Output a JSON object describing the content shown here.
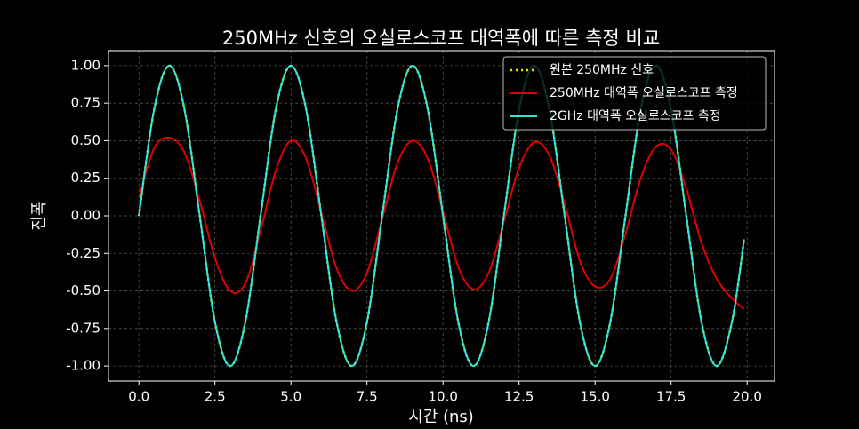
{
  "chart_data": {
    "type": "line",
    "title": "250MHz 신호의 오실로스코프 대역폭에 따른 측정 비교",
    "x_label": "시간 (ns)",
    "y_label": "진폭",
    "x": [
      0,
      0.5,
      1,
      1.5,
      2,
      2.5,
      3,
      3.5,
      4,
      4.5,
      5,
      5.5,
      6,
      6.5,
      7,
      7.5,
      8,
      8.5,
      9,
      9.5,
      10,
      10.5,
      11,
      11.5,
      12,
      12.5,
      13,
      13.5,
      14,
      14.5,
      15,
      15.5,
      16,
      16.5,
      17,
      17.5,
      18,
      18.5,
      19,
      19.5,
      19.9
    ],
    "series": [
      {
        "name": "원본 250MHz 신호",
        "color": "#e6e600",
        "dash": "dotted",
        "values": [
          0,
          0.707,
          1,
          0.707,
          0,
          -0.707,
          -1,
          -0.707,
          0,
          0.707,
          1,
          0.707,
          0,
          -0.707,
          -1,
          -0.707,
          0,
          0.707,
          1,
          0.707,
          0,
          -0.707,
          -1,
          -0.707,
          0,
          0.707,
          1,
          0.707,
          0,
          -0.707,
          -1,
          -0.707,
          0,
          0.707,
          1,
          0.707,
          0,
          -0.707,
          -1,
          -0.707,
          -0.156
        ]
      },
      {
        "name": "250MHz 대역폭 오실로스코프 측정",
        "color": "#e00000",
        "dash": "solid",
        "values": [
          0.12,
          0.45,
          0.52,
          0.42,
          0.1,
          -0.28,
          -0.5,
          -0.45,
          -0.1,
          0.3,
          0.5,
          0.38,
          0.02,
          -0.35,
          -0.5,
          -0.38,
          -0.02,
          0.35,
          0.5,
          0.38,
          0.03,
          -0.34,
          -0.49,
          -0.38,
          -0.04,
          0.32,
          0.49,
          0.4,
          0.08,
          -0.3,
          -0.47,
          -0.42,
          -0.12,
          0.25,
          0.46,
          0.44,
          0.18,
          -0.18,
          -0.42,
          -0.55,
          -0.62
        ]
      },
      {
        "name": "2GHz 대역폭 오실로스코프 측정",
        "color": "#33e6d9",
        "dash": "solid",
        "values": [
          0,
          0.707,
          1,
          0.707,
          0,
          -0.707,
          -1,
          -0.707,
          0,
          0.707,
          1,
          0.707,
          0,
          -0.707,
          -1,
          -0.707,
          0,
          0.707,
          1,
          0.707,
          0,
          -0.707,
          -1,
          -0.707,
          0,
          0.707,
          1,
          0.707,
          0,
          -0.707,
          -1,
          -0.707,
          0,
          0.707,
          1,
          0.707,
          0,
          -0.707,
          -1,
          -0.707,
          -0.156
        ]
      }
    ],
    "xlim": [
      -1,
      20.9
    ],
    "ylim": [
      -1.1,
      1.1
    ],
    "xticks": [
      {
        "value": 0,
        "label": "0.0"
      },
      2.5,
      {
        "value": 5,
        "label": "5.0"
      },
      7.5,
      {
        "value": 10,
        "label": "10.0"
      },
      12.5,
      {
        "value": 15,
        "label": "15.0"
      },
      17.5,
      {
        "value": 20,
        "label": "20.0"
      }
    ],
    "yticks": [
      {
        "value": -1,
        "label": "-1.00"
      },
      -0.75,
      {
        "value": -0.5,
        "label": "-0.50"
      },
      -0.25,
      {
        "value": 0,
        "label": "0.00"
      },
      0.25,
      {
        "value": 0.5,
        "label": "0.50"
      },
      0.75,
      {
        "value": 1,
        "label": "1.00"
      }
    ],
    "grid": true,
    "legend": "upper right"
  }
}
